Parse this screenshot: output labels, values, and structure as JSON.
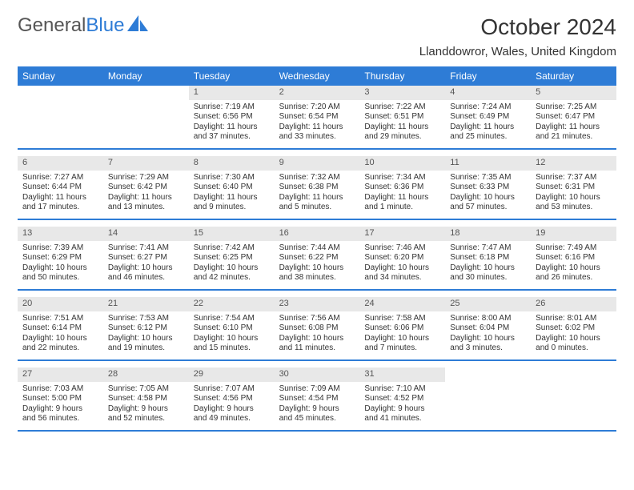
{
  "logo": {
    "text1": "General",
    "text2": "Blue"
  },
  "title": "October 2024",
  "location": "Llanddowror, Wales, United Kingdom",
  "colors": {
    "accent": "#2e7cd6",
    "daynum_bg": "#e8e8e8",
    "text": "#333333"
  },
  "dayHeaders": [
    "Sunday",
    "Monday",
    "Tuesday",
    "Wednesday",
    "Thursday",
    "Friday",
    "Saturday"
  ],
  "weeks": [
    [
      null,
      null,
      {
        "n": "1",
        "s": "Sunrise: 7:19 AM",
        "t": "Sunset: 6:56 PM",
        "d1": "Daylight: 11 hours",
        "d2": "and 37 minutes."
      },
      {
        "n": "2",
        "s": "Sunrise: 7:20 AM",
        "t": "Sunset: 6:54 PM",
        "d1": "Daylight: 11 hours",
        "d2": "and 33 minutes."
      },
      {
        "n": "3",
        "s": "Sunrise: 7:22 AM",
        "t": "Sunset: 6:51 PM",
        "d1": "Daylight: 11 hours",
        "d2": "and 29 minutes."
      },
      {
        "n": "4",
        "s": "Sunrise: 7:24 AM",
        "t": "Sunset: 6:49 PM",
        "d1": "Daylight: 11 hours",
        "d2": "and 25 minutes."
      },
      {
        "n": "5",
        "s": "Sunrise: 7:25 AM",
        "t": "Sunset: 6:47 PM",
        "d1": "Daylight: 11 hours",
        "d2": "and 21 minutes."
      }
    ],
    [
      {
        "n": "6",
        "s": "Sunrise: 7:27 AM",
        "t": "Sunset: 6:44 PM",
        "d1": "Daylight: 11 hours",
        "d2": "and 17 minutes."
      },
      {
        "n": "7",
        "s": "Sunrise: 7:29 AM",
        "t": "Sunset: 6:42 PM",
        "d1": "Daylight: 11 hours",
        "d2": "and 13 minutes."
      },
      {
        "n": "8",
        "s": "Sunrise: 7:30 AM",
        "t": "Sunset: 6:40 PM",
        "d1": "Daylight: 11 hours",
        "d2": "and 9 minutes."
      },
      {
        "n": "9",
        "s": "Sunrise: 7:32 AM",
        "t": "Sunset: 6:38 PM",
        "d1": "Daylight: 11 hours",
        "d2": "and 5 minutes."
      },
      {
        "n": "10",
        "s": "Sunrise: 7:34 AM",
        "t": "Sunset: 6:36 PM",
        "d1": "Daylight: 11 hours",
        "d2": "and 1 minute."
      },
      {
        "n": "11",
        "s": "Sunrise: 7:35 AM",
        "t": "Sunset: 6:33 PM",
        "d1": "Daylight: 10 hours",
        "d2": "and 57 minutes."
      },
      {
        "n": "12",
        "s": "Sunrise: 7:37 AM",
        "t": "Sunset: 6:31 PM",
        "d1": "Daylight: 10 hours",
        "d2": "and 53 minutes."
      }
    ],
    [
      {
        "n": "13",
        "s": "Sunrise: 7:39 AM",
        "t": "Sunset: 6:29 PM",
        "d1": "Daylight: 10 hours",
        "d2": "and 50 minutes."
      },
      {
        "n": "14",
        "s": "Sunrise: 7:41 AM",
        "t": "Sunset: 6:27 PM",
        "d1": "Daylight: 10 hours",
        "d2": "and 46 minutes."
      },
      {
        "n": "15",
        "s": "Sunrise: 7:42 AM",
        "t": "Sunset: 6:25 PM",
        "d1": "Daylight: 10 hours",
        "d2": "and 42 minutes."
      },
      {
        "n": "16",
        "s": "Sunrise: 7:44 AM",
        "t": "Sunset: 6:22 PM",
        "d1": "Daylight: 10 hours",
        "d2": "and 38 minutes."
      },
      {
        "n": "17",
        "s": "Sunrise: 7:46 AM",
        "t": "Sunset: 6:20 PM",
        "d1": "Daylight: 10 hours",
        "d2": "and 34 minutes."
      },
      {
        "n": "18",
        "s": "Sunrise: 7:47 AM",
        "t": "Sunset: 6:18 PM",
        "d1": "Daylight: 10 hours",
        "d2": "and 30 minutes."
      },
      {
        "n": "19",
        "s": "Sunrise: 7:49 AM",
        "t": "Sunset: 6:16 PM",
        "d1": "Daylight: 10 hours",
        "d2": "and 26 minutes."
      }
    ],
    [
      {
        "n": "20",
        "s": "Sunrise: 7:51 AM",
        "t": "Sunset: 6:14 PM",
        "d1": "Daylight: 10 hours",
        "d2": "and 22 minutes."
      },
      {
        "n": "21",
        "s": "Sunrise: 7:53 AM",
        "t": "Sunset: 6:12 PM",
        "d1": "Daylight: 10 hours",
        "d2": "and 19 minutes."
      },
      {
        "n": "22",
        "s": "Sunrise: 7:54 AM",
        "t": "Sunset: 6:10 PM",
        "d1": "Daylight: 10 hours",
        "d2": "and 15 minutes."
      },
      {
        "n": "23",
        "s": "Sunrise: 7:56 AM",
        "t": "Sunset: 6:08 PM",
        "d1": "Daylight: 10 hours",
        "d2": "and 11 minutes."
      },
      {
        "n": "24",
        "s": "Sunrise: 7:58 AM",
        "t": "Sunset: 6:06 PM",
        "d1": "Daylight: 10 hours",
        "d2": "and 7 minutes."
      },
      {
        "n": "25",
        "s": "Sunrise: 8:00 AM",
        "t": "Sunset: 6:04 PM",
        "d1": "Daylight: 10 hours",
        "d2": "and 3 minutes."
      },
      {
        "n": "26",
        "s": "Sunrise: 8:01 AM",
        "t": "Sunset: 6:02 PM",
        "d1": "Daylight: 10 hours",
        "d2": "and 0 minutes."
      }
    ],
    [
      {
        "n": "27",
        "s": "Sunrise: 7:03 AM",
        "t": "Sunset: 5:00 PM",
        "d1": "Daylight: 9 hours",
        "d2": "and 56 minutes."
      },
      {
        "n": "28",
        "s": "Sunrise: 7:05 AM",
        "t": "Sunset: 4:58 PM",
        "d1": "Daylight: 9 hours",
        "d2": "and 52 minutes."
      },
      {
        "n": "29",
        "s": "Sunrise: 7:07 AM",
        "t": "Sunset: 4:56 PM",
        "d1": "Daylight: 9 hours",
        "d2": "and 49 minutes."
      },
      {
        "n": "30",
        "s": "Sunrise: 7:09 AM",
        "t": "Sunset: 4:54 PM",
        "d1": "Daylight: 9 hours",
        "d2": "and 45 minutes."
      },
      {
        "n": "31",
        "s": "Sunrise: 7:10 AM",
        "t": "Sunset: 4:52 PM",
        "d1": "Daylight: 9 hours",
        "d2": "and 41 minutes."
      },
      null,
      null
    ]
  ]
}
